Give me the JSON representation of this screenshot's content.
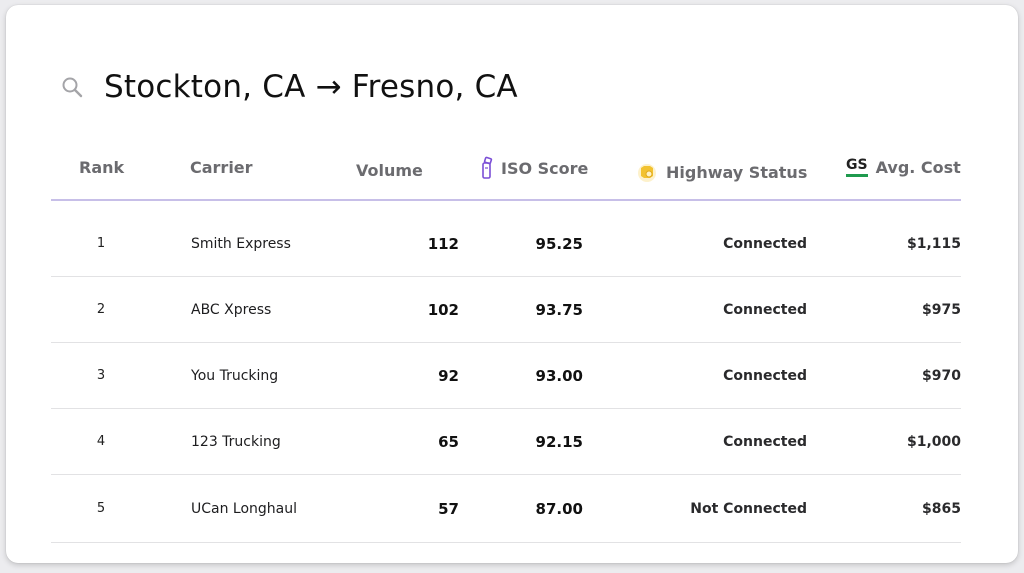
{
  "route": {
    "title": "Stockton, CA → Fresno, CA",
    "icon": "search-icon"
  },
  "colors": {
    "header_divider": "#c7bfe8",
    "iso_icon": "#7b4fd6",
    "highway_icon": "#f2c230",
    "gs_underline": "#1f9a4e"
  },
  "table": {
    "headers": {
      "rank": "Rank",
      "carrier": "Carrier",
      "volume": "Volume",
      "iso_score": "ISO Score",
      "highway_status": "Highway Status",
      "avg_cost": "Avg. Cost",
      "avg_cost_icon_text": "GS"
    },
    "rows": [
      {
        "rank": "1",
        "carrier": "Smith Express",
        "volume": "112",
        "iso_score": "95.25",
        "highway_status": "Connected",
        "avg_cost": "$1,115"
      },
      {
        "rank": "2",
        "carrier": "ABC Xpress",
        "volume": "102",
        "iso_score": "93.75",
        "highway_status": "Connected",
        "avg_cost": "$975"
      },
      {
        "rank": "3",
        "carrier": "You Trucking",
        "volume": "92",
        "iso_score": "93.00",
        "highway_status": "Connected",
        "avg_cost": "$970"
      },
      {
        "rank": "4",
        "carrier": "123 Trucking",
        "volume": "65",
        "iso_score": "92.15",
        "highway_status": "Connected",
        "avg_cost": "$1,000"
      },
      {
        "rank": "5",
        "carrier": "UCan Longhaul",
        "volume": "57",
        "iso_score": "87.00",
        "highway_status": "Not Connected",
        "avg_cost": "$865"
      }
    ]
  }
}
